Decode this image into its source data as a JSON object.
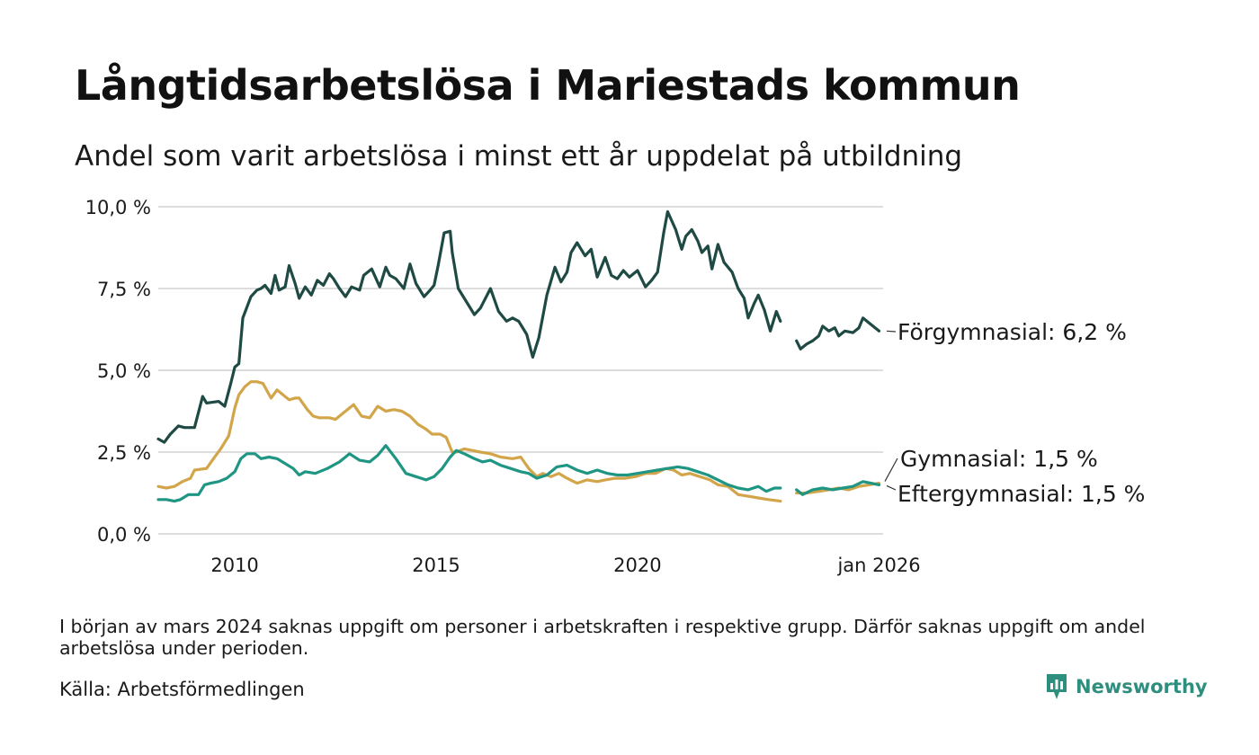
{
  "title": "Långtidsarbetslösa i Mariestads kommun",
  "subtitle": "Andel som varit arbetslösa i minst ett år uppdelat på utbildning",
  "note": "I början av mars 2024 saknas uppgift om personer i arbetskraften i respektive grupp. Därför saknas uppgift om andel arbetslösa under perioden.",
  "source": "Källa: Arbetsförmedlingen",
  "brand": {
    "name": "Newsworthy",
    "icon": "newsworthy-logo-icon"
  },
  "colors": {
    "forgymnasial": "#1f4a44",
    "gymnasial": "#d3a54a",
    "eftergymnasial": "#1f9683",
    "grid": "#dddddd",
    "brand": "#2e8f7e"
  },
  "chart_data": {
    "type": "line",
    "title": "Långtidsarbetslösa i Mariestads kommun",
    "xlabel": "",
    "ylabel": "",
    "xlim": [
      2008.1,
      2026.1
    ],
    "ylim": [
      0,
      10
    ],
    "y_ticks": [
      {
        "value": 0,
        "label": "0,0 %"
      },
      {
        "value": 2.5,
        "label": "2,5 %"
      },
      {
        "value": 5,
        "label": "5,0 %"
      },
      {
        "value": 7.5,
        "label": "7,5 %"
      },
      {
        "value": 10,
        "label": "10,0 %"
      }
    ],
    "x_ticks": [
      {
        "value": 2010,
        "label": "2010"
      },
      {
        "value": 2015,
        "label": "2015"
      },
      {
        "value": 2020,
        "label": "2020"
      },
      {
        "value": 2026,
        "label": "jan 2026"
      }
    ],
    "gap": [
      2023.55,
      2023.95
    ],
    "series": [
      {
        "name": "Förgymnasial",
        "end_label": "Förgymnasial: 6,2 %",
        "color_key": "forgymnasial",
        "x": [
          2008.1,
          2008.25,
          2008.4,
          2008.6,
          2008.75,
          2009.0,
          2009.2,
          2009.3,
          2009.6,
          2009.75,
          2009.9,
          2010.0,
          2010.1,
          2010.2,
          2010.4,
          2010.55,
          2010.65,
          2010.75,
          2010.9,
          2011.0,
          2011.1,
          2011.25,
          2011.35,
          2011.5,
          2011.6,
          2011.75,
          2011.9,
          2012.05,
          2012.2,
          2012.35,
          2012.45,
          2012.6,
          2012.75,
          2012.9,
          2013.1,
          2013.2,
          2013.4,
          2013.6,
          2013.75,
          2013.85,
          2014.0,
          2014.2,
          2014.35,
          2014.5,
          2014.7,
          2014.85,
          2014.95,
          2015.05,
          2015.2,
          2015.35,
          2015.4,
          2015.55,
          2015.75,
          2015.95,
          2016.1,
          2016.35,
          2016.55,
          2016.75,
          2016.9,
          2017.05,
          2017.25,
          2017.4,
          2017.55,
          2017.75,
          2017.95,
          2018.1,
          2018.25,
          2018.35,
          2018.5,
          2018.7,
          2018.85,
          2019.0,
          2019.2,
          2019.35,
          2019.5,
          2019.65,
          2019.8,
          2020.0,
          2020.2,
          2020.35,
          2020.5,
          2020.65,
          2020.75,
          2020.95,
          2021.1,
          2021.2,
          2021.35,
          2021.5,
          2021.6,
          2021.75,
          2021.85,
          2022.0,
          2022.15,
          2022.35,
          2022.5,
          2022.65,
          2022.75,
          2022.9,
          2023.0,
          2023.15,
          2023.3,
          2023.45,
          2023.55
        ],
        "values": [
          2.9,
          2.8,
          3.05,
          3.3,
          3.25,
          3.25,
          4.2,
          4.0,
          4.05,
          3.9,
          4.6,
          5.1,
          5.2,
          6.6,
          7.25,
          7.45,
          7.5,
          7.6,
          7.35,
          7.9,
          7.45,
          7.55,
          8.2,
          7.65,
          7.2,
          7.55,
          7.3,
          7.75,
          7.6,
          7.95,
          7.8,
          7.5,
          7.25,
          7.55,
          7.45,
          7.9,
          8.1,
          7.55,
          8.15,
          7.9,
          7.8,
          7.5,
          8.25,
          7.65,
          7.25,
          7.45,
          7.6,
          8.2,
          9.2,
          9.25,
          8.6,
          7.5,
          7.1,
          6.7,
          6.9,
          7.5,
          6.8,
          6.5,
          6.6,
          6.5,
          6.1,
          5.4,
          6.0,
          7.3,
          8.15,
          7.7,
          8.0,
          8.6,
          8.9,
          8.5,
          8.7,
          7.85,
          8.45,
          7.9,
          7.8,
          8.05,
          7.85,
          8.05,
          7.55,
          7.75,
          8.0,
          9.2,
          9.85,
          9.3,
          8.7,
          9.1,
          9.3,
          8.95,
          8.6,
          8.8,
          8.1,
          8.85,
          8.3,
          8.0,
          7.5,
          7.2,
          6.6,
          7.05,
          7.3,
          6.85,
          6.2,
          6.8,
          6.5
        ]
      },
      {
        "name": "Förgymnasial (forts.)",
        "color_key": "forgymnasial",
        "x": [
          2023.95,
          2024.05,
          2024.2,
          2024.35,
          2024.5,
          2024.6,
          2024.75,
          2024.9,
          2025.0,
          2025.15,
          2025.35,
          2025.5,
          2025.6,
          2025.75,
          2026.0
        ],
        "values": [
          5.9,
          5.65,
          5.8,
          5.9,
          6.05,
          6.35,
          6.2,
          6.3,
          6.05,
          6.2,
          6.15,
          6.3,
          6.6,
          6.45,
          6.2
        ]
      },
      {
        "name": "Gymnasial",
        "end_label": "Gymnasial: 1,5 %",
        "color_key": "gymnasial",
        "x": [
          2008.1,
          2008.3,
          2008.5,
          2008.7,
          2008.9,
          2009.0,
          2009.3,
          2009.5,
          2009.65,
          2009.85,
          2010.0,
          2010.1,
          2010.25,
          2010.4,
          2010.55,
          2010.7,
          2010.9,
          2011.05,
          2011.2,
          2011.35,
          2011.5,
          2011.6,
          2011.8,
          2011.95,
          2012.1,
          2012.35,
          2012.5,
          2012.75,
          2012.95,
          2013.15,
          2013.35,
          2013.55,
          2013.75,
          2013.95,
          2014.15,
          2014.35,
          2014.55,
          2014.75,
          2014.9,
          2015.1,
          2015.25,
          2015.4,
          2015.5,
          2015.7,
          2015.9,
          2016.1,
          2016.35,
          2016.6,
          2016.9,
          2017.1,
          2017.3,
          2017.5,
          2017.65,
          2017.85,
          2018.05,
          2018.25,
          2018.5,
          2018.75,
          2019.0,
          2019.2,
          2019.45,
          2019.7,
          2019.95,
          2020.2,
          2020.45,
          2020.7,
          2020.9,
          2021.1,
          2021.3,
          2021.55,
          2021.8,
          2022.0,
          2022.25,
          2022.5,
          2022.75,
          2023.0,
          2023.25,
          2023.55
        ],
        "values": [
          1.45,
          1.4,
          1.45,
          1.6,
          1.7,
          1.95,
          2.0,
          2.35,
          2.6,
          3.0,
          3.85,
          4.25,
          4.5,
          4.65,
          4.65,
          4.6,
          4.15,
          4.4,
          4.25,
          4.1,
          4.15,
          4.15,
          3.8,
          3.6,
          3.55,
          3.55,
          3.5,
          3.75,
          3.95,
          3.6,
          3.55,
          3.9,
          3.75,
          3.8,
          3.75,
          3.6,
          3.35,
          3.2,
          3.05,
          3.05,
          2.95,
          2.5,
          2.5,
          2.6,
          2.55,
          2.5,
          2.45,
          2.35,
          2.3,
          2.35,
          2.0,
          1.75,
          1.85,
          1.75,
          1.85,
          1.7,
          1.55,
          1.65,
          1.6,
          1.65,
          1.7,
          1.7,
          1.75,
          1.85,
          1.85,
          2.0,
          1.95,
          1.8,
          1.85,
          1.75,
          1.65,
          1.5,
          1.45,
          1.2,
          1.15,
          1.1,
          1.05,
          1.0
        ]
      },
      {
        "name": "Gymnasial (forts.)",
        "color_key": "gymnasial",
        "x": [
          2023.95,
          2024.2,
          2024.5,
          2024.75,
          2025.0,
          2025.25,
          2025.5,
          2025.75,
          2026.0
        ],
        "values": [
          1.25,
          1.25,
          1.3,
          1.35,
          1.4,
          1.35,
          1.45,
          1.5,
          1.55
        ]
      },
      {
        "name": "Eftergymnasial",
        "end_label": "Eftergymnasial: 1,5 %",
        "color_key": "eftergymnasial",
        "x": [
          2008.1,
          2008.3,
          2008.5,
          2008.65,
          2008.85,
          2009.1,
          2009.25,
          2009.4,
          2009.6,
          2009.8,
          2010.0,
          2010.15,
          2010.3,
          2010.5,
          2010.65,
          2010.85,
          2011.05,
          2011.25,
          2011.45,
          2011.6,
          2011.75,
          2012.0,
          2012.3,
          2012.6,
          2012.85,
          2013.1,
          2013.35,
          2013.55,
          2013.75,
          2014.0,
          2014.25,
          2014.5,
          2014.75,
          2014.95,
          2015.15,
          2015.35,
          2015.5,
          2015.7,
          2015.95,
          2016.15,
          2016.35,
          2016.6,
          2016.85,
          2017.1,
          2017.3,
          2017.5,
          2017.75,
          2018.0,
          2018.25,
          2018.5,
          2018.75,
          2019.0,
          2019.25,
          2019.5,
          2019.75,
          2020.0,
          2020.25,
          2020.5,
          2020.75,
          2021.0,
          2021.25,
          2021.5,
          2021.75,
          2022.0,
          2022.25,
          2022.5,
          2022.75,
          2023.0,
          2023.2,
          2023.4,
          2023.55
        ],
        "values": [
          1.05,
          1.05,
          1.0,
          1.05,
          1.2,
          1.2,
          1.5,
          1.55,
          1.6,
          1.7,
          1.9,
          2.3,
          2.45,
          2.45,
          2.3,
          2.35,
          2.3,
          2.15,
          2.0,
          1.8,
          1.9,
          1.85,
          2.0,
          2.2,
          2.45,
          2.25,
          2.2,
          2.4,
          2.7,
          2.3,
          1.85,
          1.75,
          1.65,
          1.75,
          2.0,
          2.35,
          2.55,
          2.45,
          2.3,
          2.2,
          2.25,
          2.1,
          2.0,
          1.9,
          1.85,
          1.7,
          1.8,
          2.05,
          2.1,
          1.95,
          1.85,
          1.95,
          1.85,
          1.8,
          1.8,
          1.85,
          1.9,
          1.95,
          2.0,
          2.05,
          2.0,
          1.9,
          1.8,
          1.65,
          1.5,
          1.4,
          1.35,
          1.45,
          1.3,
          1.4,
          1.4
        ]
      },
      {
        "name": "Eftergymnasial (forts.)",
        "color_key": "eftergymnasial",
        "x": [
          2023.95,
          2024.1,
          2024.35,
          2024.6,
          2024.85,
          2025.1,
          2025.35,
          2025.6,
          2025.8,
          2026.0
        ],
        "values": [
          1.35,
          1.2,
          1.35,
          1.4,
          1.35,
          1.4,
          1.45,
          1.6,
          1.55,
          1.5
        ]
      }
    ]
  }
}
